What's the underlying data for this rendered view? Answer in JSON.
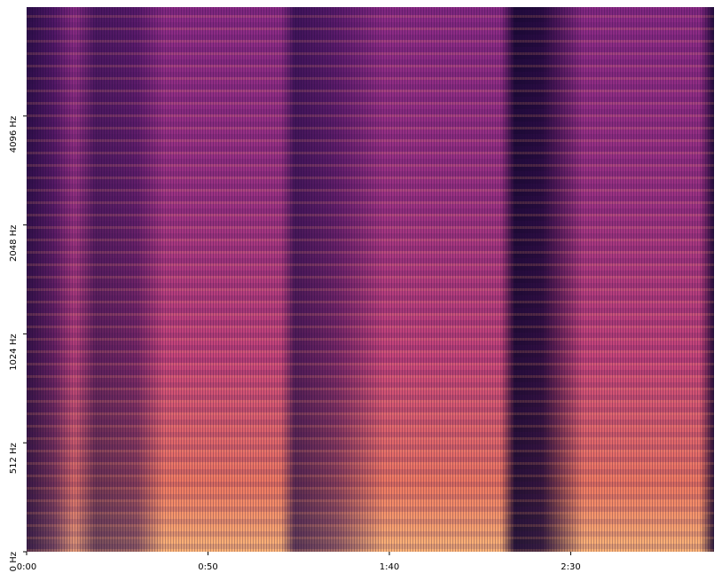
{
  "chart_data": {
    "type": "spectrogram",
    "xlim": [
      0,
      189.5
    ],
    "xticks": [
      {
        "value": 0,
        "label": "0:00"
      },
      {
        "value": 50,
        "label": "0:50"
      },
      {
        "value": 100,
        "label": "1:40"
      },
      {
        "value": 150,
        "label": "2:30"
      }
    ],
    "ylim": [
      0,
      8192
    ],
    "yscale": "symlog",
    "linthresh": 512,
    "yticks": [
      {
        "value": 0,
        "label": "0 Hz"
      },
      {
        "value": 512,
        "label": "512 Hz"
      },
      {
        "value": 1024,
        "label": "1024 Hz"
      },
      {
        "value": 2048,
        "label": "2048 Hz"
      },
      {
        "value": 4096,
        "label": "4096 Hz"
      }
    ]
  }
}
